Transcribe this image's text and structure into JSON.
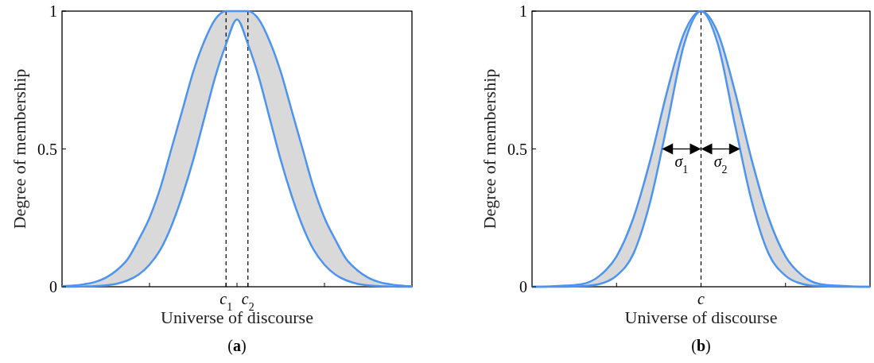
{
  "chart_data": [
    {
      "type": "line",
      "xlabel": "Universe of discourse",
      "ylabel": "Degree of membership",
      "ylim": [
        0,
        1
      ],
      "yticks": [
        0,
        0.5,
        1
      ],
      "categories": [
        null,
        null,
        null,
        null,
        null,
        null,
        null,
        null,
        null,
        null,
        null,
        null,
        null,
        null,
        null,
        "c$_{1}$",
        null,
        "c$_{2}$",
        null,
        null,
        null,
        null,
        null,
        null,
        null,
        null,
        null,
        null,
        null,
        null,
        null,
        null,
        null
      ],
      "series": [
        {
          "color": "#4d94f0",
          "values": [
            0.002,
            0.004,
            0.009,
            0.017,
            0.033,
            0.06,
            0.1,
            0.17,
            0.25,
            0.36,
            0.5,
            0.64,
            0.78,
            0.89,
            0.97,
            1,
            1,
            1,
            0.97,
            0.89,
            0.78,
            0.64,
            0.5,
            0.36,
            0.25,
            0.17,
            0.1,
            0.06,
            0.033,
            0.017,
            0.009,
            0.004,
            0.002
          ]
        },
        {
          "color": "#4d94f0",
          "values": [
            0,
            0,
            0.001,
            0.002,
            0.005,
            0.011,
            0.023,
            0.044,
            0.08,
            0.135,
            0.22,
            0.33,
            0.46,
            0.61,
            0.76,
            0.88,
            0.97,
            0.88,
            0.76,
            0.61,
            0.46,
            0.33,
            0.22,
            0.135,
            0.08,
            0.044,
            0.023,
            0.011,
            0.005,
            0.002,
            0.001,
            0,
            0
          ]
        }
      ],
      "ref_lines": [
        {
          "axis": "x",
          "value": "c$_{1}$",
          "line_style": "dashed",
          "color": "#000000"
        },
        {
          "axis": "x",
          "value": "c$_{2}$",
          "line_style": "dashed",
          "color": "#000000"
        }
      ],
      "annotations": [
        "(a)"
      ],
      "grid": false
    },
    {
      "type": "line",
      "xlabel": "Universe of discourse",
      "ylabel": "Degree of membership",
      "ylim": [
        0,
        1
      ],
      "yticks": [
        0,
        0.5,
        1
      ],
      "categories": [
        null,
        null,
        null,
        null,
        null,
        null,
        null,
        null,
        null,
        null,
        "c",
        null,
        null,
        null,
        null,
        null,
        null,
        null,
        null,
        null,
        null
      ],
      "series": [
        {
          "color": "#4d94f0",
          "values": [
            0,
            0.001,
            0.004,
            0.01,
            0.04,
            0.11,
            0.25,
            0.46,
            0.71,
            0.92,
            1,
            0.92,
            0.71,
            0.46,
            0.25,
            0.11,
            0.04,
            0.01,
            0.004,
            0.001,
            0
          ]
        },
        {
          "color": "#4d94f0",
          "values": [
            0,
            0,
            0,
            0.002,
            0.01,
            0.04,
            0.12,
            0.31,
            0.59,
            0.88,
            1,
            0.88,
            0.59,
            0.31,
            0.12,
            0.04,
            0.01,
            0.002,
            0,
            0,
            0
          ]
        }
      ],
      "ref_lines": [
        {
          "axis": "x",
          "value": "c",
          "line_style": "dashed",
          "color": "#000000"
        }
      ],
      "annotations": [
        "σ$_{1}$",
        "σ$_{2}$",
        "(b)"
      ],
      "grid": false
    }
  ]
}
